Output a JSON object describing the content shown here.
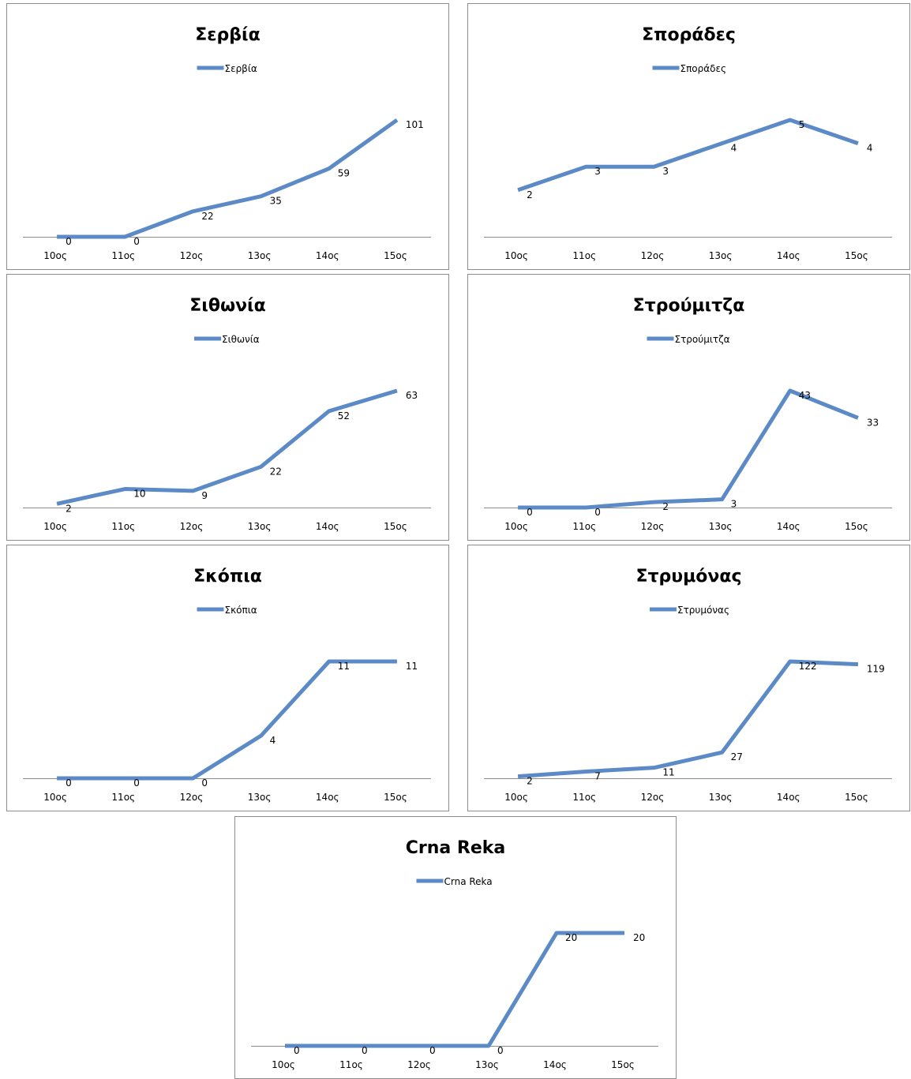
{
  "chart_data": [
    {
      "type": "line",
      "title": "Σερβία",
      "legend": [
        "Σερβία"
      ],
      "categories": [
        "10ος",
        "11ος",
        "12ος",
        "13ος",
        "14ος",
        "15ος"
      ],
      "series": [
        {
          "name": "Σερβία",
          "values": [
            0,
            0,
            22,
            35,
            59,
            101
          ]
        }
      ],
      "ylim": [
        0,
        101
      ],
      "grid": false,
      "legend_position": "top"
    },
    {
      "type": "line",
      "title": "Σποράδες",
      "legend": [
        "Σποράδες"
      ],
      "categories": [
        "10ος",
        "11ος",
        "12ος",
        "13ος",
        "14ος",
        "15ος"
      ],
      "series": [
        {
          "name": "Σποράδες",
          "values": [
            2,
            3,
            3,
            4,
            5,
            4
          ]
        }
      ],
      "ylim": [
        0,
        5
      ],
      "grid": false,
      "legend_position": "top"
    },
    {
      "type": "line",
      "title": "Σιθωνία",
      "legend": [
        "Σιθωνία"
      ],
      "categories": [
        "10ος",
        "11ος",
        "12ος",
        "13ος",
        "14ος",
        "15ος"
      ],
      "series": [
        {
          "name": "Σιθωνία",
          "values": [
            2,
            10,
            9,
            22,
            52,
            63
          ]
        }
      ],
      "ylim": [
        0,
        63
      ],
      "grid": false,
      "legend_position": "top"
    },
    {
      "type": "line",
      "title": "Στρούμιτζα",
      "legend": [
        "Στρούμιτζα"
      ],
      "categories": [
        "10ος",
        "11ος",
        "12ος",
        "13ος",
        "14ος",
        "15ος"
      ],
      "series": [
        {
          "name": "Στρούμιτζα",
          "values": [
            0,
            0,
            2,
            3,
            43,
            33
          ]
        }
      ],
      "ylim": [
        0,
        43
      ],
      "grid": false,
      "legend_position": "top"
    },
    {
      "type": "line",
      "title": "Σκόπια",
      "legend": [
        "Σκόπια"
      ],
      "categories": [
        "10ος",
        "11ος",
        "12ος",
        "13ος",
        "14ος",
        "15ος"
      ],
      "series": [
        {
          "name": "Σκόπια",
          "values": [
            0,
            0,
            0,
            4,
            11,
            11
          ]
        }
      ],
      "ylim": [
        0,
        11
      ],
      "grid": false,
      "legend_position": "top"
    },
    {
      "type": "line",
      "title": "Στρυμόνας",
      "legend": [
        "Στρυμόνας"
      ],
      "categories": [
        "10ος",
        "11ος",
        "12ος",
        "13ος",
        "14ος",
        "15ος"
      ],
      "series": [
        {
          "name": "Στρυμόνας",
          "values": [
            2,
            7,
            11,
            27,
            122,
            119
          ]
        }
      ],
      "ylim": [
        0,
        122
      ],
      "grid": false,
      "legend_position": "top"
    },
    {
      "type": "line",
      "title": "Crna Reka",
      "legend": [
        "Crna Reka"
      ],
      "categories": [
        "10ος",
        "11ος",
        "12ος",
        "13ος",
        "14ος",
        "15ος"
      ],
      "series": [
        {
          "name": "Crna Reka",
          "values": [
            0,
            0,
            0,
            0,
            20,
            20
          ]
        }
      ],
      "ylim": [
        0,
        20
      ],
      "grid": false,
      "legend_position": "top"
    }
  ],
  "colors": {
    "series": "#5b8ac6",
    "axis": "#8c8c8c",
    "border": "#8c8c8c"
  }
}
